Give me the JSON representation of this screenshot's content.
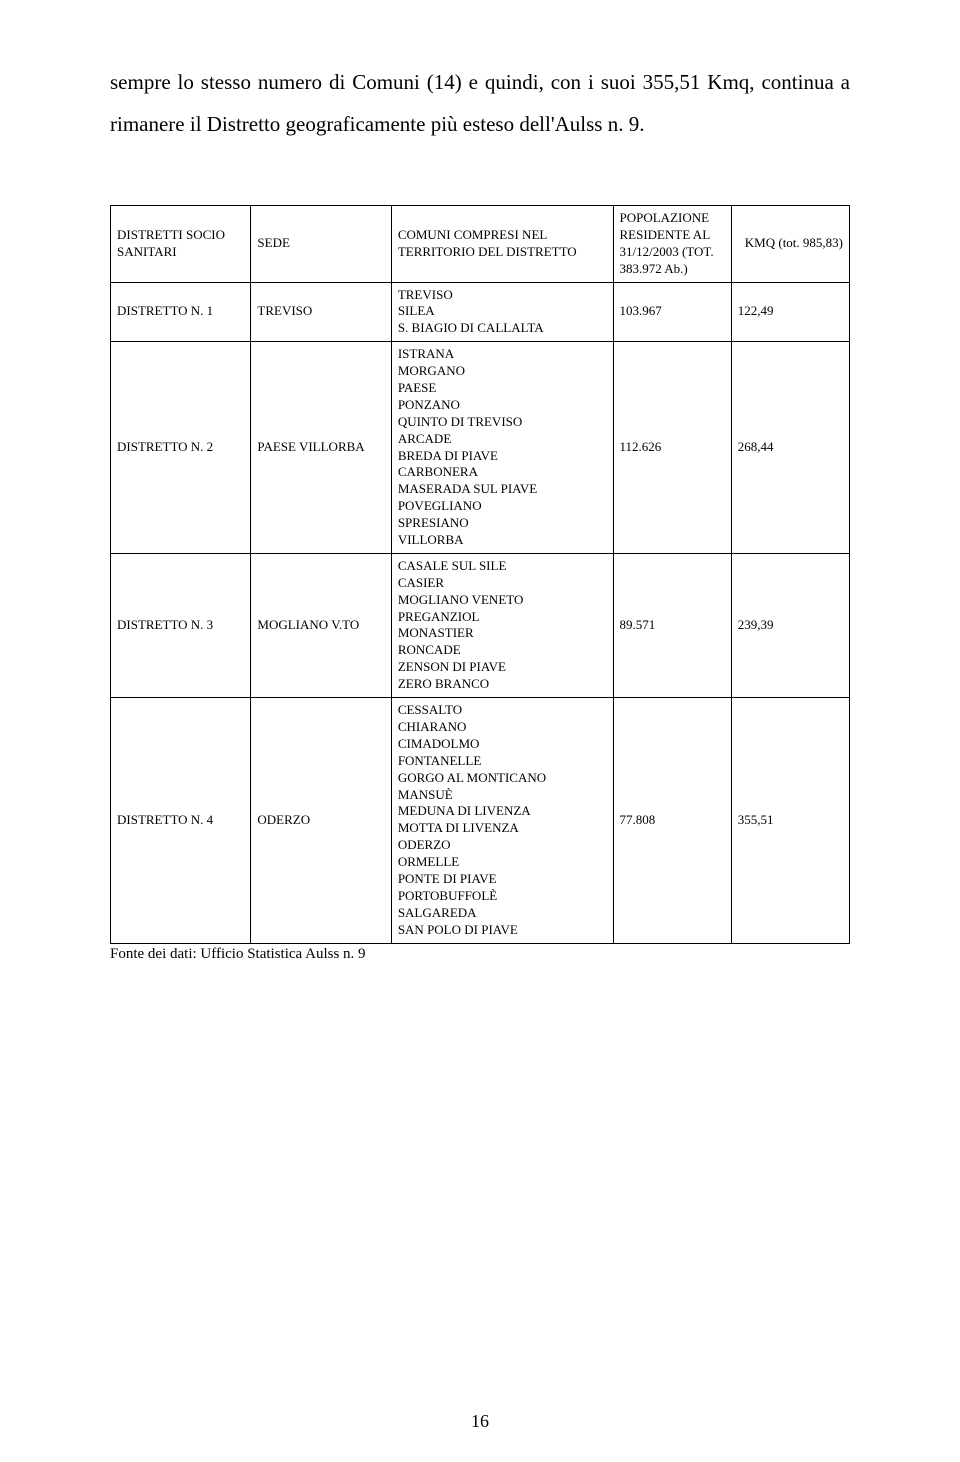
{
  "intro": "sempre lo stesso numero di Comuni (14) e quindi, con i suoi 355,51 Kmq, continua a rimanere il Distretto geograficamente più esteso dell'Aulss n. 9.",
  "caption": "Fonte dei dati: Ufficio Statistica Aulss n. 9",
  "page_number": "16",
  "table": {
    "headers": {
      "distretto": "DISTRETTI SOCIO SANITARI",
      "sede": "SEDE",
      "comuni": "COMUNI COMPRESI NEL TERRITORIO DEL DISTRETTO",
      "popolazione": "POPOLAZIONE RESIDENTE AL 31/12/2003 (TOT. 383.972 Ab.)",
      "kmq": "KMQ (tot. 985,83)"
    },
    "rows": [
      {
        "distretto": "DISTRETTO N. 1",
        "sede": "TREVISO",
        "comuni": [
          "TREVISO",
          "SILEA",
          "S. BIAGIO DI CALLALTA"
        ],
        "pop": "103.967",
        "kmq": "122,49"
      },
      {
        "distretto": "DISTRETTO N. 2",
        "sede": "PAESE VILLORBA",
        "comuni": [
          "ISTRANA",
          "MORGANO",
          "PAESE",
          "PONZANO",
          "QUINTO DI TREVISO",
          "ARCADE",
          "BREDA DI PIAVE",
          "CARBONERA",
          "MASERADA SUL PIAVE",
          "POVEGLIANO",
          "SPRESIANO",
          "VILLORBA"
        ],
        "pop": "112.626",
        "kmq": "268,44"
      },
      {
        "distretto": "DISTRETTO N. 3",
        "sede": "MOGLIANO V.TO",
        "comuni": [
          "CASALE SUL SILE",
          "CASIER",
          "MOGLIANO VENETO",
          "PREGANZIOL",
          "MONASTIER",
          "RONCADE",
          "ZENSON DI PIAVE",
          "ZERO BRANCO"
        ],
        "pop": "89.571",
        "kmq": "239,39"
      },
      {
        "distretto": "DISTRETTO N. 4",
        "sede": "ODERZO",
        "comuni": [
          "CESSALTO",
          "CHIARANO",
          "CIMADOLMO",
          "FONTANELLE",
          "GORGO AL MONTICANO",
          "MANSUÈ",
          "MEDUNA DI LIVENZA",
          "MOTTA DI LIVENZA",
          "ODERZO",
          "ORMELLE",
          "PONTE DI PIAVE",
          "PORTOBUFFOLÈ",
          "SALGAREDA",
          "SAN POLO DI PIAVE"
        ],
        "pop": "77.808",
        "kmq": "355,51"
      }
    ]
  }
}
